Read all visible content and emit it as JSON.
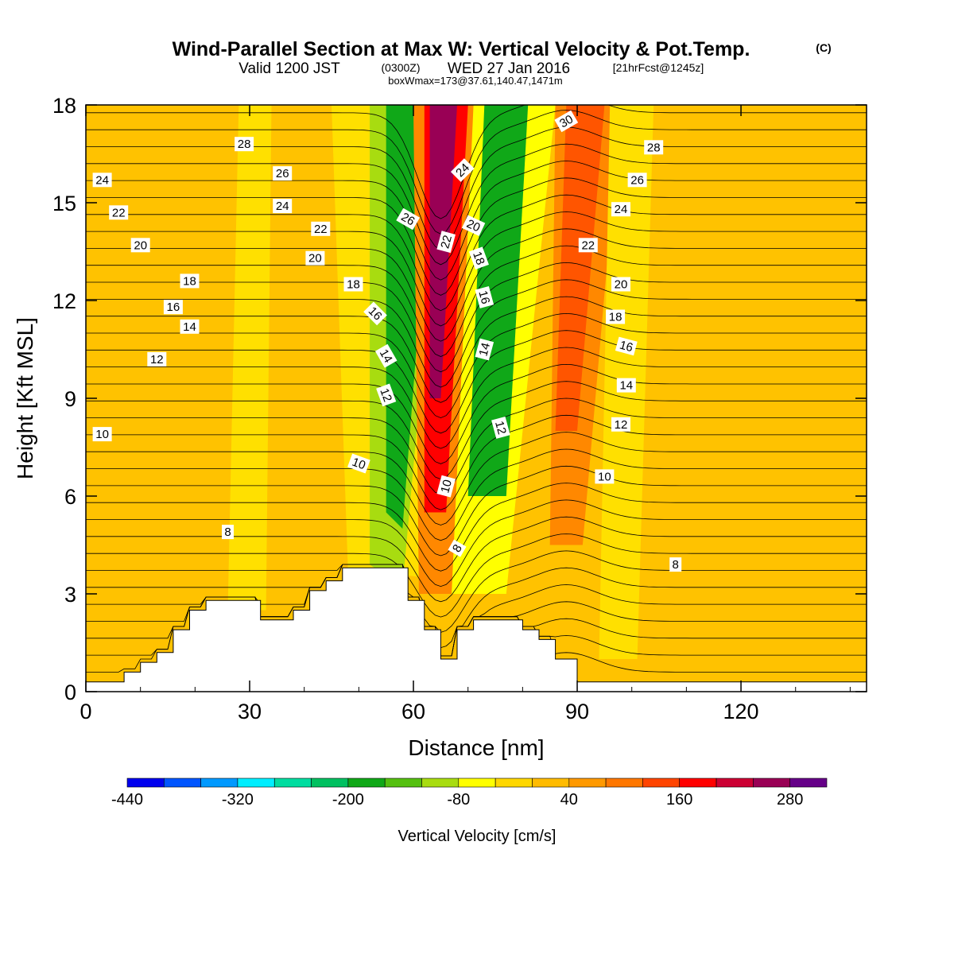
{
  "chart_data": {
    "type": "heatmap",
    "title": "Wind-Parallel Section at Max W: Vertical Velocity & Pot.Temp.",
    "title_mark": "(C)",
    "subtitle": {
      "valid_prefix": "Valid 1200 JST",
      "utc": "(0300Z)",
      "date": "WED 27 Jan 2016",
      "forecast": "[21hrFcst@1245z]"
    },
    "subtitle2": "boxWmax=173@37.61,140.47,1471m",
    "xlabel": "Distance [nm]",
    "ylabel": "Height [Kft MSL]",
    "xlim": [
      0,
      143
    ],
    "ylim": [
      0,
      18
    ],
    "x_ticks": [
      "0",
      "30",
      "60",
      "90",
      "120"
    ],
    "y_ticks": [
      "0",
      "3",
      "6",
      "9",
      "12",
      "15",
      "18"
    ],
    "colorbar": {
      "label": "Vertical Velocity [cm/s]",
      "tick_labels": [
        "-440",
        "-320",
        "-200",
        "-80",
        "40",
        "160",
        "280"
      ],
      "colors": [
        "#0000ee",
        "#0055ff",
        "#0099ff",
        "#00eeff",
        "#00dda0",
        "#00c060",
        "#10a818",
        "#55c010",
        "#a8dc10",
        "#ffff00",
        "#ffd700",
        "#ffbb00",
        "#ff9900",
        "#ff7700",
        "#ff4400",
        "#ff0000",
        "#cc0033",
        "#990055",
        "#660088"
      ]
    },
    "velocity_field": {
      "background": "#ffc200",
      "bands": [
        {
          "name": "downdraft-upwind",
          "color": "#ffe000",
          "points": [
            [
              48,
              3.8
            ],
            [
              62,
              3.5
            ],
            [
              72,
              18
            ],
            [
              45,
              18
            ]
          ]
        },
        {
          "name": "downdraft-green-1",
          "color": "#a8dc10",
          "points": [
            [
              52,
              3.9
            ],
            [
              58,
              3.2
            ],
            [
              66,
              18
            ],
            [
              52,
              18
            ]
          ]
        },
        {
          "name": "downdraft-green-2",
          "color": "#10a818",
          "points": [
            [
              55,
              5.5
            ],
            [
              58,
              5
            ],
            [
              64,
              18
            ],
            [
              55,
              18
            ]
          ]
        },
        {
          "name": "updraft-orange",
          "color": "#ff8800",
          "points": [
            [
              61,
              3
            ],
            [
              67,
              3
            ],
            [
              72,
              18
            ],
            [
              60,
              18
            ]
          ]
        },
        {
          "name": "updraft-red",
          "color": "#ff0000",
          "points": [
            [
              62,
              5.5
            ],
            [
              66,
              5.5
            ],
            [
              70,
              18
            ],
            [
              62,
              18
            ]
          ]
        },
        {
          "name": "updraft-core",
          "color": "#990055",
          "points": [
            [
              63,
              9
            ],
            [
              65,
              9
            ],
            [
              68,
              18
            ],
            [
              63,
              18
            ]
          ]
        },
        {
          "name": "downdraft-lee-yellow",
          "color": "#ffff00",
          "points": [
            [
              67,
              3
            ],
            [
              77,
              3
            ],
            [
              86,
              18
            ],
            [
              71,
              18
            ]
          ]
        },
        {
          "name": "downdraft-lee-green",
          "color": "#10a818",
          "points": [
            [
              70,
              6
            ],
            [
              77,
              6
            ],
            [
              81,
              18
            ],
            [
              73,
              18
            ]
          ]
        },
        {
          "name": "updraft-lee-orange",
          "color": "#ff8800",
          "points": [
            [
              85,
              4.5
            ],
            [
              91,
              4.5
            ],
            [
              98,
              18
            ],
            [
              86,
              18
            ]
          ]
        },
        {
          "name": "updraft-lee-red",
          "color": "#ff5500",
          "points": [
            [
              86,
              8
            ],
            [
              90,
              8
            ],
            [
              95,
              18
            ],
            [
              88,
              18
            ]
          ]
        },
        {
          "name": "light-band-left",
          "color": "#ffe000",
          "points": [
            [
              26,
              2.5
            ],
            [
              33,
              2.5
            ],
            [
              34,
              18
            ],
            [
              28,
              18
            ]
          ]
        },
        {
          "name": "light-band-right",
          "color": "#ffe000",
          "points": [
            [
              94,
              1
            ],
            [
              101,
              1
            ],
            [
              104,
              18
            ],
            [
              96,
              18
            ]
          ]
        }
      ]
    },
    "terrain": {
      "heights_kft": [
        0.3,
        0.3,
        0.3,
        0.3,
        0.3,
        0.3,
        0.3,
        0.6,
        0.6,
        0.6,
        0.9,
        0.9,
        0.9,
        1.2,
        1.2,
        1.2,
        1.9,
        1.9,
        1.9,
        2.5,
        2.5,
        2.5,
        2.8,
        2.8,
        2.8,
        2.8,
        2.8,
        2.8,
        2.8,
        2.8,
        2.8,
        2.8,
        2.2,
        2.2,
        2.2,
        2.2,
        2.2,
        2.2,
        2.5,
        2.5,
        2.5,
        3.1,
        3.1,
        3.1,
        3.4,
        3.4,
        3.4,
        3.8,
        3.8,
        3.8,
        3.8,
        3.8,
        3.8,
        3.8,
        3.8,
        3.8,
        3.8,
        3.8,
        3.8,
        2.8,
        2.8,
        2.8,
        1.9,
        1.9,
        1.9,
        1.0,
        1.0,
        1.0,
        1.9,
        1.9,
        1.9,
        2.2,
        2.2,
        2.2,
        2.2,
        2.2,
        2.2,
        2.2,
        2.2,
        2.2,
        1.9,
        1.9,
        1.9,
        1.6,
        1.6,
        1.6,
        1.0,
        1.0,
        1.0,
        1.0,
        0.3,
        0.3,
        0.3,
        0.3,
        0.3,
        0.3,
        0.3,
        0.3,
        0.3,
        0.3,
        0.3,
        0.3,
        0.3,
        0.3,
        0.3,
        0.3,
        0.3,
        0.3,
        0.3,
        0.3,
        0.3,
        0.3,
        0.3,
        0.3,
        0.3,
        0.3,
        0.3,
        0.3,
        0.3,
        0.3,
        0.3,
        0.3,
        0.3,
        0.3,
        0.3,
        0.3,
        0.3,
        0.3,
        0.3,
        0.3,
        0.3,
        0.3,
        0.3,
        0.3,
        0.3,
        0.3,
        0.3,
        0.3,
        0.3,
        0.3,
        0.3,
        0.3,
        0.3,
        0.3
      ]
    },
    "isentrope_labels": [
      {
        "text": "8",
        "x": 26,
        "y": 4.9,
        "angle": 0
      },
      {
        "text": "8",
        "x": 68,
        "y": 4.4,
        "angle": -60
      },
      {
        "text": "8",
        "x": 108,
        "y": 3.9,
        "angle": 0
      },
      {
        "text": "10",
        "x": 3,
        "y": 7.9,
        "angle": 0
      },
      {
        "text": "10",
        "x": 50,
        "y": 7.0,
        "angle": 20
      },
      {
        "text": "10",
        "x": 66,
        "y": 6.3,
        "angle": -75
      },
      {
        "text": "10",
        "x": 95,
        "y": 6.6,
        "angle": 0
      },
      {
        "text": "12",
        "x": 13,
        "y": 10.2,
        "angle": 0
      },
      {
        "text": "12",
        "x": 55,
        "y": 9.1,
        "angle": 70
      },
      {
        "text": "12",
        "x": 76,
        "y": 8.1,
        "angle": 75
      },
      {
        "text": "12",
        "x": 98,
        "y": 8.2,
        "angle": 0
      },
      {
        "text": "14",
        "x": 19,
        "y": 11.2,
        "angle": 0
      },
      {
        "text": "14",
        "x": 55,
        "y": 10.3,
        "angle": 60
      },
      {
        "text": "14",
        "x": 73,
        "y": 10.5,
        "angle": -75
      },
      {
        "text": "14",
        "x": 99,
        "y": 9.4,
        "angle": 0
      },
      {
        "text": "16",
        "x": 16,
        "y": 11.8,
        "angle": 0
      },
      {
        "text": "16",
        "x": 53,
        "y": 11.6,
        "angle": 45
      },
      {
        "text": "16",
        "x": 73,
        "y": 12.1,
        "angle": 75
      },
      {
        "text": "16",
        "x": 99,
        "y": 10.6,
        "angle": 15
      },
      {
        "text": "18",
        "x": 19,
        "y": 12.6,
        "angle": 0
      },
      {
        "text": "18",
        "x": 49,
        "y": 12.5,
        "angle": 0
      },
      {
        "text": "18",
        "x": 72,
        "y": 13.3,
        "angle": 70
      },
      {
        "text": "18",
        "x": 97,
        "y": 11.5,
        "angle": 0
      },
      {
        "text": "20",
        "x": 10,
        "y": 13.7,
        "angle": 0
      },
      {
        "text": "20",
        "x": 42,
        "y": 13.3,
        "angle": 0
      },
      {
        "text": "20",
        "x": 71,
        "y": 14.3,
        "angle": 25
      },
      {
        "text": "20",
        "x": 98,
        "y": 12.5,
        "angle": 0
      },
      {
        "text": "22",
        "x": 6,
        "y": 14.7,
        "angle": 0
      },
      {
        "text": "22",
        "x": 43,
        "y": 14.2,
        "angle": 0
      },
      {
        "text": "22",
        "x": 66,
        "y": 13.8,
        "angle": -75
      },
      {
        "text": "22",
        "x": 92,
        "y": 13.7,
        "angle": 0
      },
      {
        "text": "24",
        "x": 3,
        "y": 15.7,
        "angle": 0
      },
      {
        "text": "24",
        "x": 36,
        "y": 14.9,
        "angle": 0
      },
      {
        "text": "24",
        "x": 69,
        "y": 16.0,
        "angle": -45
      },
      {
        "text": "24",
        "x": 98,
        "y": 14.8,
        "angle": 0
      },
      {
        "text": "26",
        "x": 36,
        "y": 15.9,
        "angle": 0
      },
      {
        "text": "26",
        "x": 59,
        "y": 14.5,
        "angle": 30
      },
      {
        "text": "26",
        "x": 101,
        "y": 15.7,
        "angle": 0
      },
      {
        "text": "28",
        "x": 29,
        "y": 16.8,
        "angle": 0
      },
      {
        "text": "28",
        "x": 104,
        "y": 16.7,
        "angle": 0
      },
      {
        "text": "30",
        "x": 88,
        "y": 17.5,
        "angle": -30
      }
    ]
  }
}
